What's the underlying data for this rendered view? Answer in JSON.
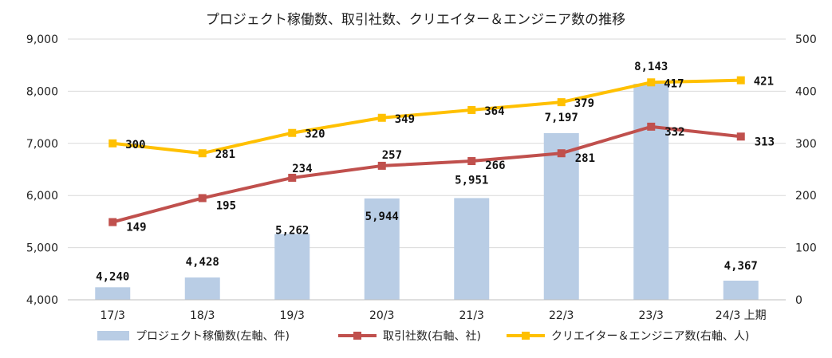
{
  "chart_data": {
    "type": "bar",
    "title": "プロジェクト稼働数、取引社数、クリエイター＆エンジニア数の推移",
    "categories": [
      "17/3",
      "18/3",
      "19/3",
      "20/3",
      "21/3",
      "22/3",
      "23/3",
      "24/3 上期"
    ],
    "y_left": {
      "range": [
        4000,
        9000
      ],
      "ticks": [
        "4,000",
        "5,000",
        "6,000",
        "7,000",
        "8,000",
        "9,000"
      ]
    },
    "y_right": {
      "range": [
        0,
        500
      ],
      "ticks": [
        "0",
        "100",
        "200",
        "300",
        "400",
        "500"
      ]
    },
    "grid": true,
    "legend_position": "bottom",
    "series": [
      {
        "name": "プロジェクト稼働数(左軸、件)",
        "type": "bar",
        "axis": "left",
        "color": "#b9cde5",
        "values": [
          4240,
          4428,
          5262,
          5944,
          5951,
          7197,
          8143,
          4367
        ],
        "labels": [
          "4,240",
          "4,428",
          "5,262",
          "5,944",
          "5,951",
          "7,197",
          "8,143",
          "4,367"
        ]
      },
      {
        "name": "取引社数(右軸、社)",
        "type": "line",
        "axis": "right",
        "color": "#c0504d",
        "values": [
          149,
          195,
          234,
          257,
          266,
          281,
          332,
          313
        ],
        "labels": [
          "149",
          "195",
          "234",
          "257",
          "266",
          "281",
          "332",
          "313"
        ]
      },
      {
        "name": "クリエイター＆エンジニア数(右軸、人)",
        "type": "line",
        "axis": "right",
        "color": "#ffc000",
        "values": [
          300,
          281,
          320,
          349,
          364,
          379,
          417,
          421
        ],
        "labels": [
          "300",
          "281",
          "320",
          "349",
          "364",
          "379",
          "417",
          "421"
        ]
      }
    ]
  }
}
